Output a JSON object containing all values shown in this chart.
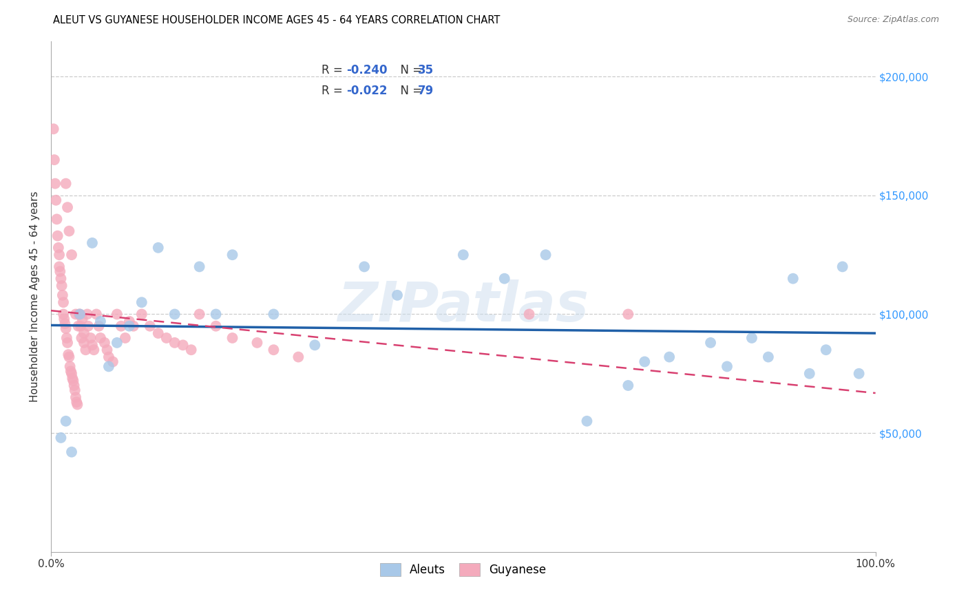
{
  "title": "ALEUT VS GUYANESE HOUSEHOLDER INCOME AGES 45 - 64 YEARS CORRELATION CHART",
  "source": "Source: ZipAtlas.com",
  "ylabel": "Householder Income Ages 45 - 64 years",
  "xlim": [
    0.0,
    1.0
  ],
  "ylim": [
    0,
    215000
  ],
  "yticks": [
    0,
    50000,
    100000,
    150000,
    200000
  ],
  "ytick_labels": [
    "",
    "$50,000",
    "$100,000",
    "$150,000",
    "$200,000"
  ],
  "blue_scatter_color": "#A8C8E8",
  "pink_scatter_color": "#F4AABC",
  "blue_line_color": "#2060A8",
  "pink_line_color": "#D84070",
  "watermark": "ZIPatlas",
  "aleuts_x": [
    0.012,
    0.018,
    0.025,
    0.035,
    0.05,
    0.06,
    0.07,
    0.08,
    0.095,
    0.11,
    0.13,
    0.15,
    0.18,
    0.2,
    0.22,
    0.27,
    0.32,
    0.38,
    0.42,
    0.5,
    0.55,
    0.6,
    0.65,
    0.7,
    0.72,
    0.75,
    0.8,
    0.82,
    0.85,
    0.87,
    0.9,
    0.92,
    0.94,
    0.96,
    0.98
  ],
  "aleuts_y": [
    48000,
    55000,
    42000,
    100000,
    130000,
    97000,
    78000,
    88000,
    95000,
    105000,
    128000,
    100000,
    120000,
    100000,
    125000,
    100000,
    87000,
    120000,
    108000,
    125000,
    115000,
    125000,
    55000,
    70000,
    80000,
    82000,
    88000,
    78000,
    90000,
    82000,
    115000,
    75000,
    85000,
    120000,
    75000
  ],
  "guyanese_x": [
    0.003,
    0.004,
    0.005,
    0.006,
    0.007,
    0.008,
    0.009,
    0.01,
    0.01,
    0.011,
    0.012,
    0.013,
    0.014,
    0.015,
    0.015,
    0.016,
    0.017,
    0.018,
    0.018,
    0.019,
    0.02,
    0.02,
    0.021,
    0.022,
    0.022,
    0.023,
    0.024,
    0.025,
    0.025,
    0.026,
    0.027,
    0.028,
    0.029,
    0.03,
    0.03,
    0.031,
    0.032,
    0.033,
    0.034,
    0.035,
    0.036,
    0.037,
    0.038,
    0.04,
    0.04,
    0.042,
    0.044,
    0.045,
    0.048,
    0.05,
    0.052,
    0.055,
    0.058,
    0.06,
    0.065,
    0.068,
    0.07,
    0.075,
    0.08,
    0.085,
    0.09,
    0.095,
    0.1,
    0.11,
    0.12,
    0.13,
    0.14,
    0.15,
    0.16,
    0.17,
    0.18,
    0.2,
    0.22,
    0.25,
    0.27,
    0.3,
    0.58,
    0.7
  ],
  "guyanese_y": [
    178000,
    165000,
    155000,
    148000,
    140000,
    133000,
    128000,
    125000,
    120000,
    118000,
    115000,
    112000,
    108000,
    105000,
    100000,
    98000,
    96000,
    94000,
    155000,
    90000,
    88000,
    145000,
    83000,
    82000,
    135000,
    78000,
    76000,
    75000,
    125000,
    73000,
    72000,
    70000,
    68000,
    65000,
    100000,
    63000,
    62000,
    95000,
    100000,
    100000,
    95000,
    90000,
    98000,
    92000,
    88000,
    85000,
    100000,
    95000,
    90000,
    87000,
    85000,
    100000,
    95000,
    90000,
    88000,
    85000,
    82000,
    80000,
    100000,
    95000,
    90000,
    97000,
    95000,
    100000,
    95000,
    92000,
    90000,
    88000,
    87000,
    85000,
    100000,
    95000,
    90000,
    88000,
    85000,
    82000,
    100000,
    100000
  ]
}
